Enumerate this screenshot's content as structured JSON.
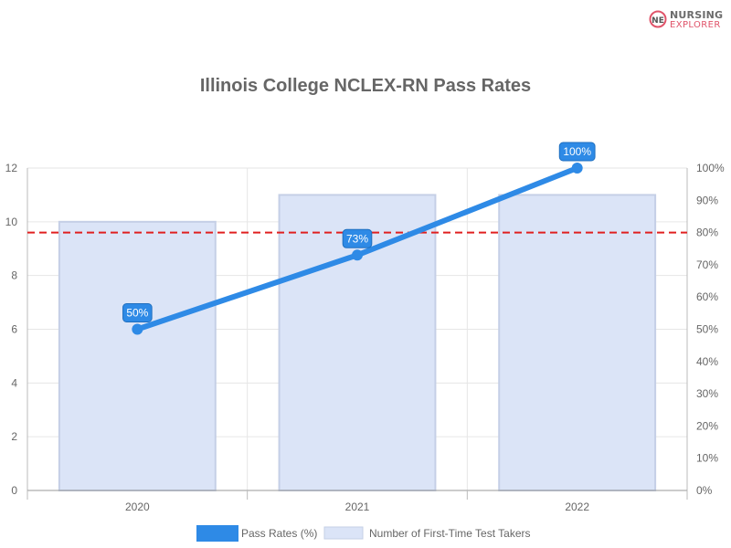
{
  "logo": {
    "line1": "NURSING",
    "line2": "EXPLORER",
    "mark": "NE",
    "icon": "nursing-explorer-logo-icon",
    "accent": "#e0546a"
  },
  "chart_data": {
    "type": "bar",
    "title": "Illinois College NCLEX-RN Pass Rates",
    "categories": [
      "2020",
      "2021",
      "2022"
    ],
    "series": [
      {
        "name": "Pass Rates (%)",
        "type": "line",
        "axis": "right",
        "values": [
          50,
          73,
          100
        ],
        "labels": [
          "50%",
          "73%",
          "100%"
        ],
        "color": "#2e8ae6"
      },
      {
        "name": "Number of First-Time Test Takers",
        "type": "bar",
        "axis": "left",
        "values": [
          10,
          11,
          11
        ],
        "color": "#dbe4f7",
        "border": "#c5cfe6"
      }
    ],
    "y_left": {
      "min": 0,
      "max": 12,
      "step": 2,
      "ticks": [
        "0",
        "2",
        "4",
        "6",
        "8",
        "10",
        "12"
      ]
    },
    "y_right": {
      "min": 0,
      "max": 100,
      "step": 10,
      "ticks": [
        "0%",
        "10%",
        "20%",
        "30%",
        "40%",
        "50%",
        "60%",
        "70%",
        "80%",
        "90%",
        "100%"
      ]
    },
    "reference_line": {
      "value": 80,
      "axis": "right",
      "color": "#e02020",
      "style": "dashed"
    },
    "grid": true,
    "legend_position": "bottom"
  }
}
